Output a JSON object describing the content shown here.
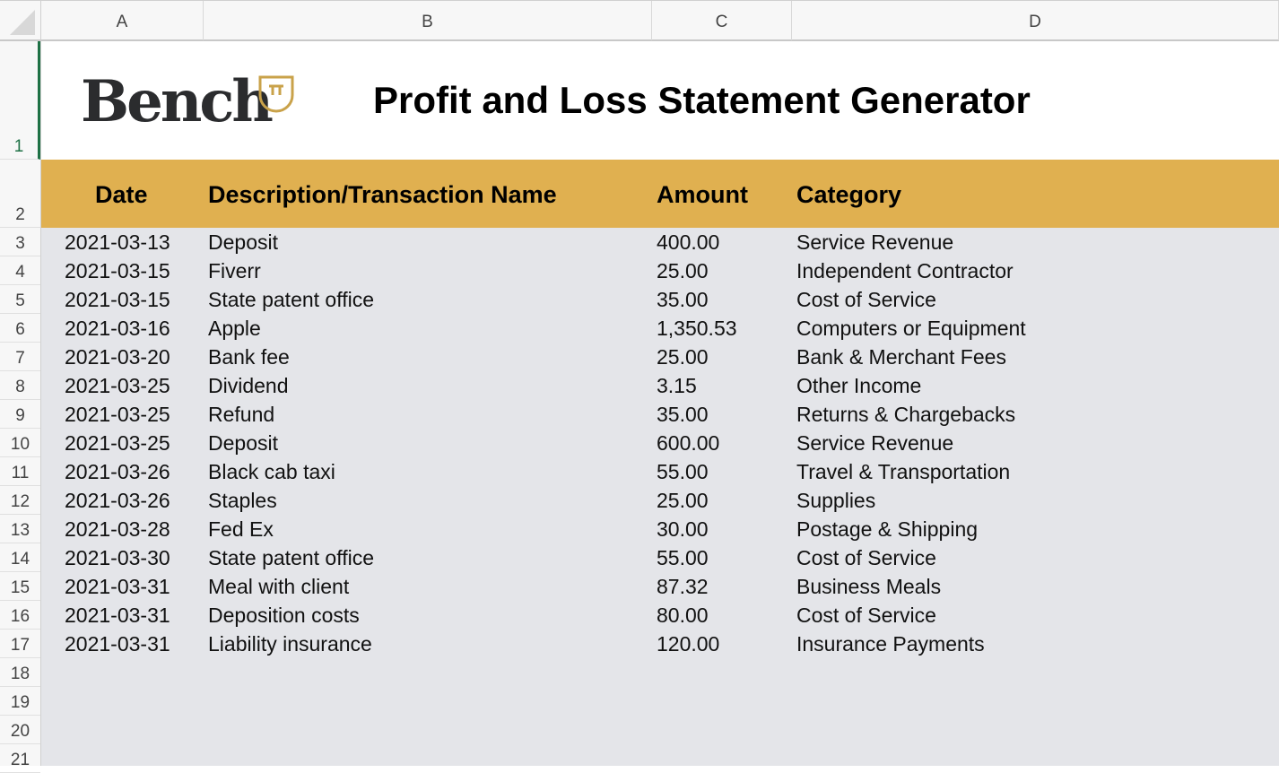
{
  "columns": [
    "A",
    "B",
    "C",
    "D"
  ],
  "row_numbers": [
    "1",
    "2",
    "3",
    "4",
    "5",
    "6",
    "7",
    "8",
    "9",
    "10",
    "11",
    "12",
    "13",
    "14",
    "15",
    "16",
    "17",
    "18",
    "19",
    "20",
    "21"
  ],
  "logo": {
    "text": "Bench",
    "accent_color": "#c9a24a"
  },
  "title": "Profit and Loss Statement Generator",
  "header_color": "#e0b050",
  "headers": {
    "date": "Date",
    "description": "Description/Transaction Name",
    "amount": "Amount",
    "category": "Category"
  },
  "rows": [
    {
      "date": "2021-03-13",
      "description": "Deposit",
      "amount": "400.00",
      "category": "Service Revenue"
    },
    {
      "date": "2021-03-15",
      "description": "Fiverr",
      "amount": "25.00",
      "category": "Independent Contractor"
    },
    {
      "date": "2021-03-15",
      "description": "State patent office",
      "amount": "35.00",
      "category": "Cost of Service"
    },
    {
      "date": "2021-03-16",
      "description": "Apple",
      "amount": "1,350.53",
      "category": "Computers or Equipment"
    },
    {
      "date": "2021-03-20",
      "description": "Bank fee",
      "amount": "25.00",
      "category": "Bank & Merchant Fees"
    },
    {
      "date": "2021-03-25",
      "description": "Dividend",
      "amount": "3.15",
      "category": "Other Income"
    },
    {
      "date": "2021-03-25",
      "description": "Refund",
      "amount": "35.00",
      "category": "Returns & Chargebacks"
    },
    {
      "date": "2021-03-25",
      "description": "Deposit",
      "amount": "600.00",
      "category": "Service Revenue"
    },
    {
      "date": "2021-03-26",
      "description": "Black cab taxi",
      "amount": "55.00",
      "category": "Travel & Transportation"
    },
    {
      "date": "2021-03-26",
      "description": "Staples",
      "amount": "25.00",
      "category": "Supplies"
    },
    {
      "date": "2021-03-28",
      "description": "Fed Ex",
      "amount": "30.00",
      "category": "Postage & Shipping"
    },
    {
      "date": "2021-03-30",
      "description": "State patent office",
      "amount": "55.00",
      "category": "Cost of Service"
    },
    {
      "date": "2021-03-31",
      "description": "Meal with client",
      "amount": "87.32",
      "category": "Business Meals"
    },
    {
      "date": "2021-03-31",
      "description": "Deposition costs",
      "amount": "80.00",
      "category": "Cost of Service"
    },
    {
      "date": "2021-03-31",
      "description": "Liability insurance",
      "amount": "120.00",
      "category": "Insurance Payments"
    }
  ]
}
